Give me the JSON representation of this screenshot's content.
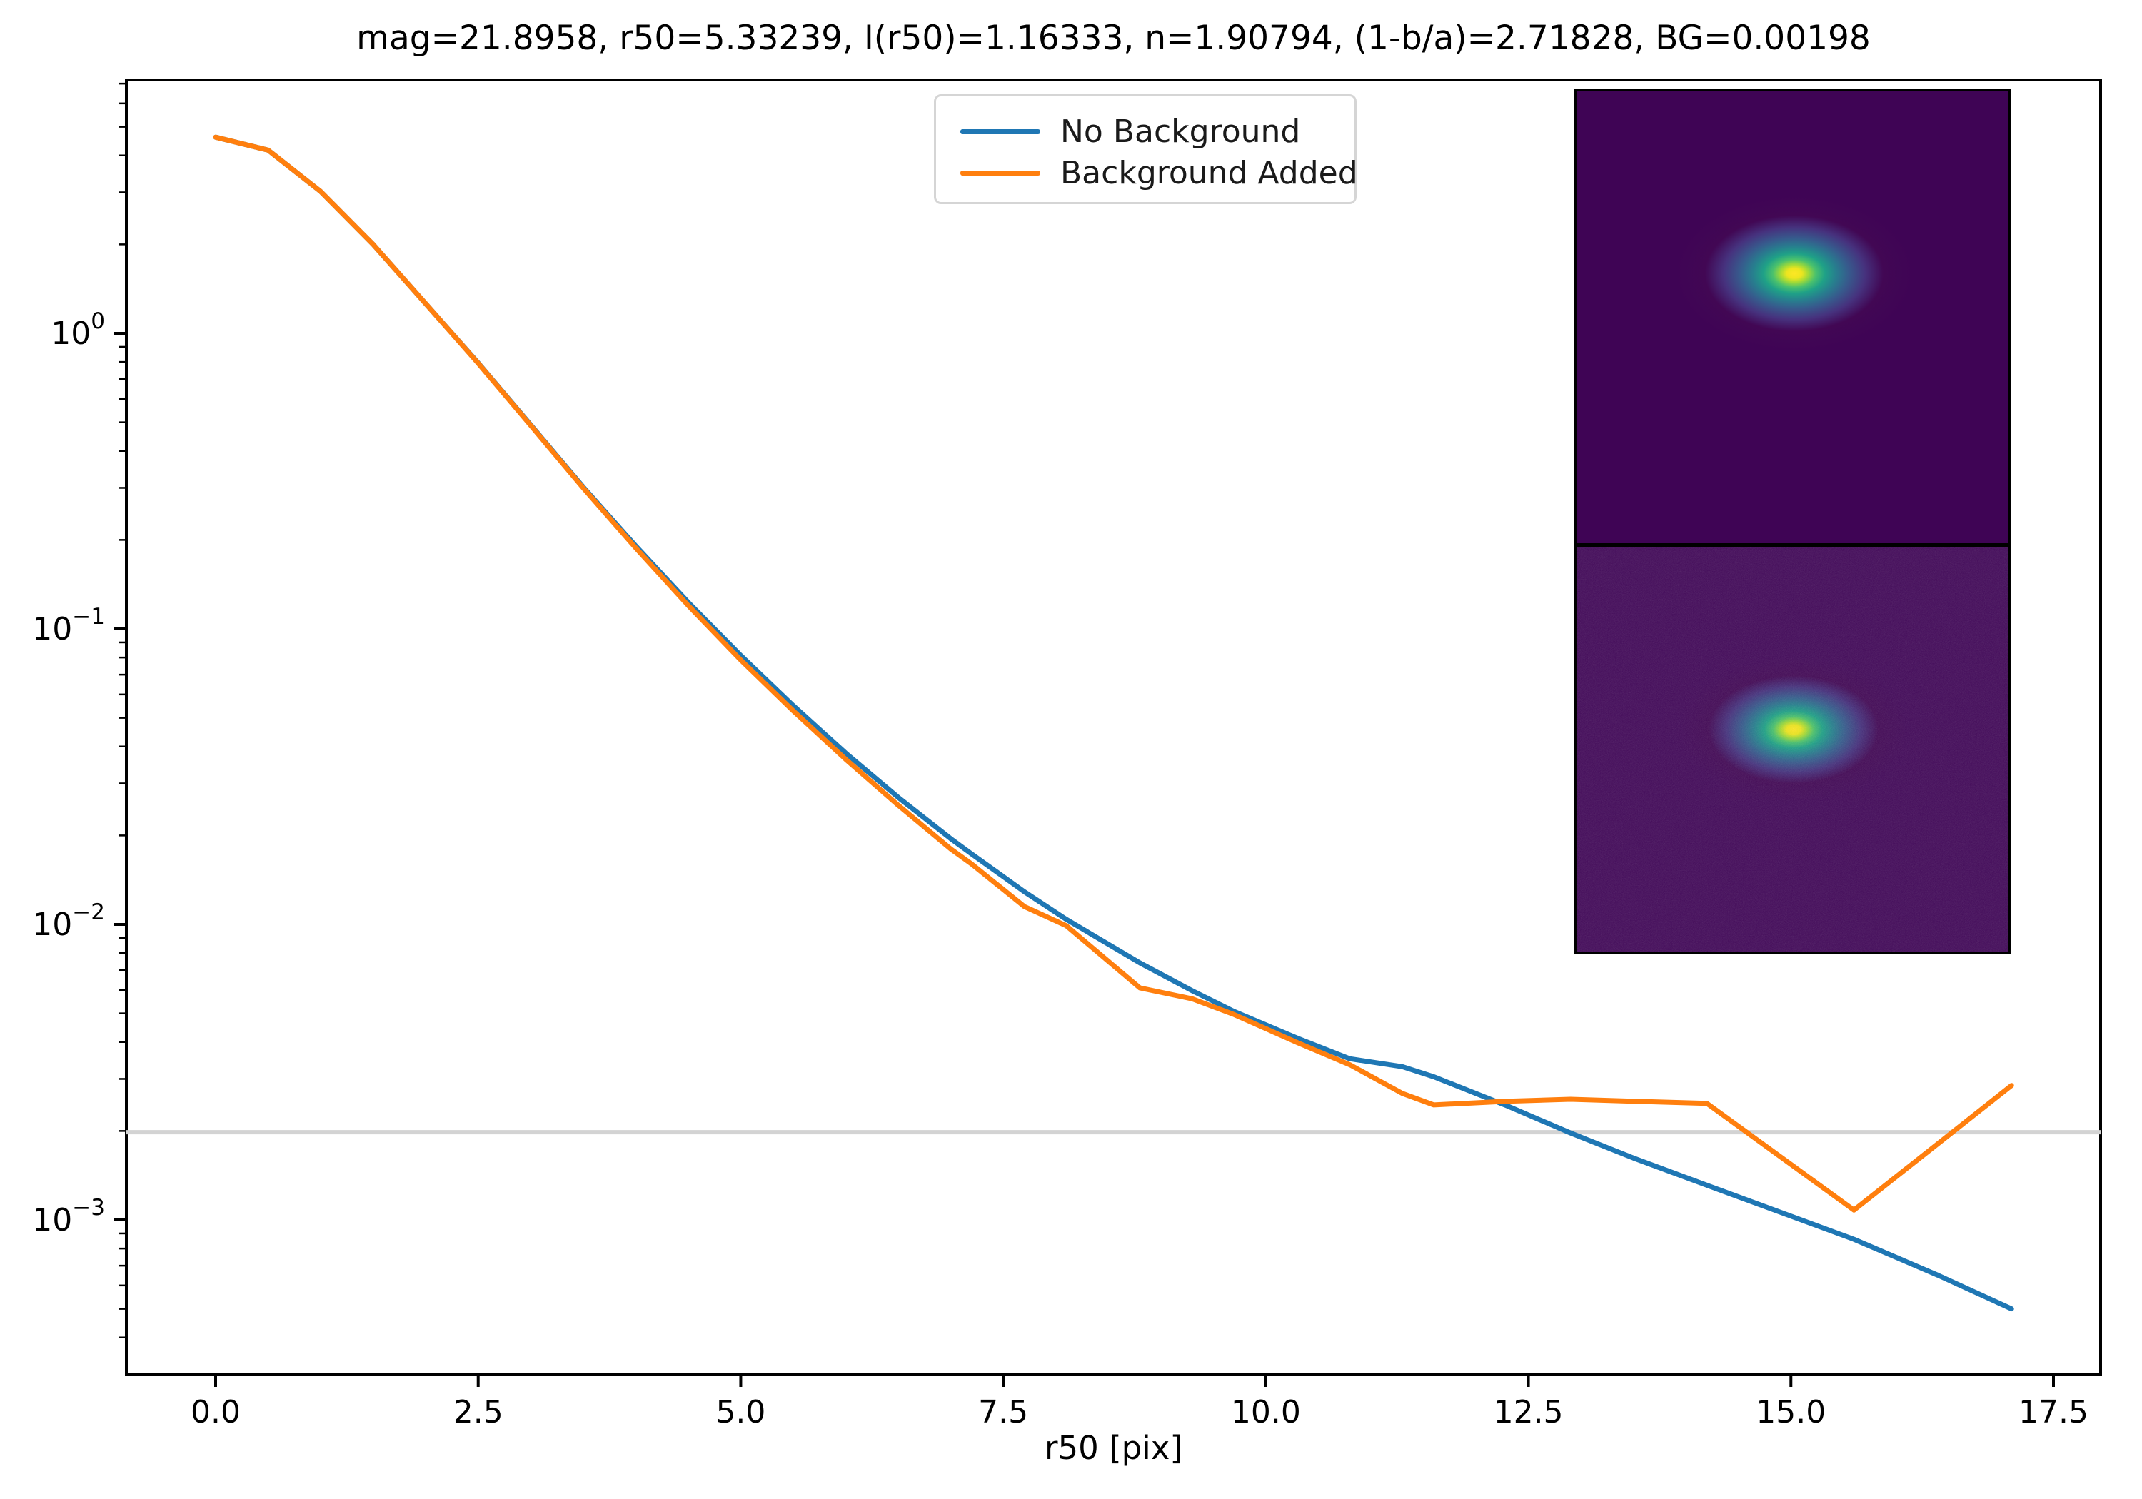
{
  "figure": {
    "title": "mag=21.8958, r50=5.33239, I(r50)=1.16333, n=1.90794, (1-b/a)=2.71828, BG=0.00198"
  },
  "chart_data": {
    "type": "line",
    "title": "mag=21.8958, r50=5.33239, I(r50)=1.16333, n=1.90794, (1-b/a)=2.71828, BG=0.00198",
    "xlabel": "r50 [pix]",
    "ylabel": "",
    "y_scale": "log",
    "grid": false,
    "xlim": [
      -0.85,
      17.95
    ],
    "ylim": [
      0.0003,
      7.1
    ],
    "x_ticks": [
      0.0,
      2.5,
      5.0,
      7.5,
      10.0,
      12.5,
      15.0,
      17.5
    ],
    "x_tick_labels": [
      "0.0",
      "2.5",
      "5.0",
      "7.5",
      "10.0",
      "12.5",
      "15.0",
      "17.5"
    ],
    "y_tick_exponents": [
      0,
      -1,
      -2,
      -3
    ],
    "background_level": 0.00198,
    "background_level_color": "#d3d3d3",
    "legend_position": "upper center",
    "x": [
      0,
      0.5,
      1,
      1.5,
      2,
      2.5,
      3,
      3.5,
      4,
      4.5,
      5,
      5.5,
      6,
      6.5,
      7,
      7.2,
      7.7,
      8.1,
      8.8,
      9.3,
      9.7,
      10.3,
      10.8,
      11.3,
      11.6,
      12.3,
      12.9,
      13.5,
      14.2,
      15.6,
      16.4,
      17.1
    ],
    "series": [
      {
        "name": "No Background",
        "color": "#1f77b4",
        "values": [
          4.61,
          4.17,
          3.02,
          2.0,
          1.26,
          0.794,
          0.49,
          0.302,
          0.191,
          0.123,
          0.0813,
          0.055,
          0.038,
          0.0269,
          0.0195,
          0.0173,
          0.0129,
          0.0104,
          0.00741,
          0.00596,
          0.00507,
          0.00412,
          0.00351,
          0.0033,
          0.00305,
          0.00243,
          0.00197,
          0.00162,
          0.00131,
          0.00086,
          0.00065,
          0.0005
        ]
      },
      {
        "name": "Background Added",
        "color": "#ff7f0e",
        "values": [
          4.61,
          4.17,
          3.02,
          2.0,
          1.26,
          0.792,
          0.488,
          0.3,
          0.188,
          0.12,
          0.0785,
          0.0528,
          0.0362,
          0.0253,
          0.018,
          0.016,
          0.0115,
          0.0099,
          0.0061,
          0.0056,
          0.00495,
          0.00398,
          0.00335,
          0.00268,
          0.00245,
          0.00252,
          0.00256,
          0.00252,
          0.00248,
          0.00108,
          0.00181,
          0.00285
        ]
      }
    ]
  },
  "legend": {
    "items": [
      {
        "label": "No Background",
        "color": "#1f77b4"
      },
      {
        "label": "Background Added",
        "color": "#ff7f0e"
      }
    ]
  },
  "inset": {
    "colormap": "viridis",
    "top_panel_background": "#3f0455",
    "bottom_panel_background": "#430a5a",
    "blob_core_color": "#fde725"
  }
}
